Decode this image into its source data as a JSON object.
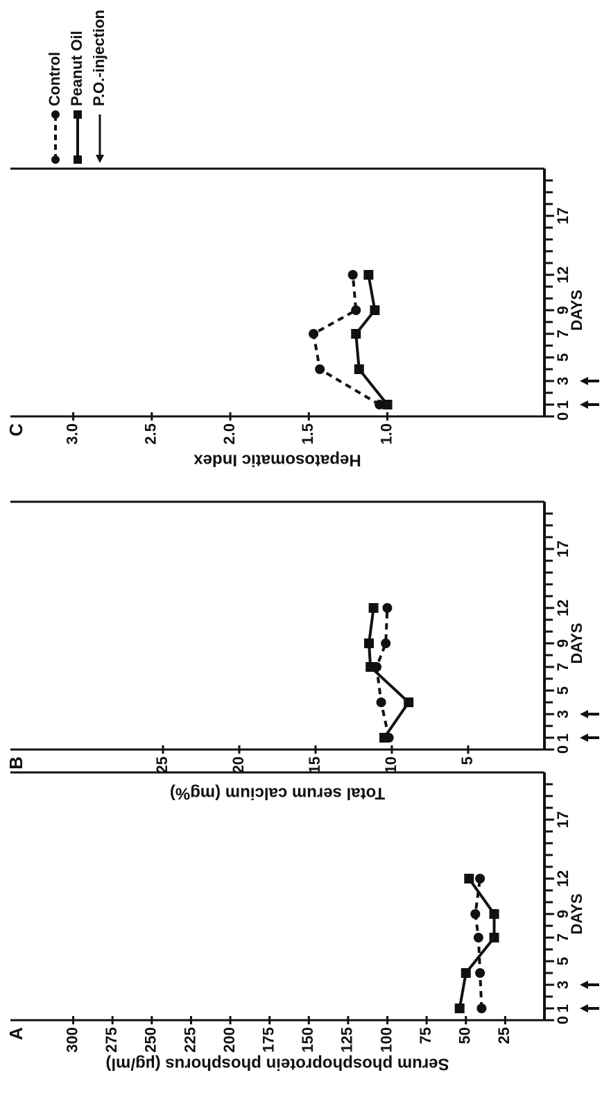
{
  "legend": {
    "injection_label": "P.O.-injection"
  },
  "chart_data": [
    {
      "type": "line",
      "panel": "A",
      "ylabel": "Serum phosphoprotein phosphorus (µg/ml)",
      "xlabel": "DAYS",
      "x": [
        1,
        4,
        7,
        9,
        12
      ],
      "series": [
        {
          "name": "Control",
          "color": "#111111",
          "style": "dashed",
          "marker": "circle",
          "values": [
            40,
            41,
            42,
            44,
            41
          ]
        },
        {
          "name": "Peanut Oil",
          "color": "#111111",
          "style": "solid",
          "marker": "square",
          "values": [
            54,
            50,
            32,
            32,
            48
          ]
        }
      ],
      "xlim": [
        0,
        21
      ],
      "xticks": [
        0,
        1,
        3,
        5,
        7,
        9,
        12,
        17
      ],
      "xminor": [
        0,
        1,
        2,
        3,
        4,
        5,
        6,
        7,
        8,
        9,
        10,
        11,
        12,
        13,
        14,
        15,
        16,
        17,
        18,
        19,
        20
      ],
      "ylim": [
        0,
        340
      ],
      "yticks": [
        25,
        50,
        75,
        100,
        125,
        150,
        175,
        200,
        225,
        250,
        275,
        300
      ],
      "injection_days": [
        1,
        3
      ]
    },
    {
      "type": "line",
      "panel": "B",
      "ylabel": "Total serum calcium (mg%)",
      "xlabel": "DAYS",
      "x": [
        1,
        4,
        7,
        9,
        12
      ],
      "series": [
        {
          "color": "#111111",
          "style": "dashed",
          "marker": "circle",
          "values": [
            10.2,
            10.7,
            11,
            10.4,
            10.3
          ]
        },
        {
          "color": "#111111",
          "style": "solid",
          "marker": "square",
          "values": [
            10.5,
            8.9,
            11.4,
            11.5,
            11.2
          ]
        }
      ],
      "xlim": [
        0,
        21
      ],
      "xticks": [
        0,
        1,
        3,
        5,
        7,
        9,
        12,
        17
      ],
      "xminor": [
        0,
        1,
        2,
        3,
        4,
        5,
        6,
        7,
        8,
        9,
        10,
        11,
        12,
        13,
        14,
        15,
        16,
        17,
        18,
        19,
        20
      ],
      "ylim": [
        0,
        35
      ],
      "yticks": [
        5,
        10,
        15,
        20,
        25
      ],
      "injection_days": [
        1,
        3
      ]
    },
    {
      "type": "line",
      "panel": "C",
      "ylabel": "Hepatosomatic Index",
      "xlabel": "DAYS",
      "x": [
        1,
        4,
        7,
        9,
        12
      ],
      "series": [
        {
          "color": "#111111",
          "style": "dashed",
          "marker": "circle",
          "values": [
            1.05,
            1.43,
            1.47,
            1.2,
            1.22
          ]
        },
        {
          "color": "#111111",
          "style": "solid",
          "marker": "square",
          "values": [
            1.0,
            1.18,
            1.2,
            1.08,
            1.12
          ]
        }
      ],
      "xlim": [
        0,
        21
      ],
      "xticks": [
        0,
        1,
        3,
        5,
        7,
        9,
        12,
        17
      ],
      "xminor": [
        0,
        1,
        2,
        3,
        4,
        5,
        6,
        7,
        8,
        9,
        10,
        11,
        12,
        13,
        14,
        15,
        16,
        17,
        18,
        19,
        20
      ],
      "ylim": [
        0,
        3.4
      ],
      "yticks": [
        {
          "value": 1,
          "label": "1.0"
        },
        {
          "value": 1.5,
          "label": "1.5"
        },
        {
          "value": 2,
          "label": "2.0"
        },
        {
          "value": 2.5,
          "label": "2.5"
        },
        {
          "value": 3,
          "label": "3.0"
        }
      ],
      "injection_days": [
        1,
        3
      ]
    }
  ]
}
